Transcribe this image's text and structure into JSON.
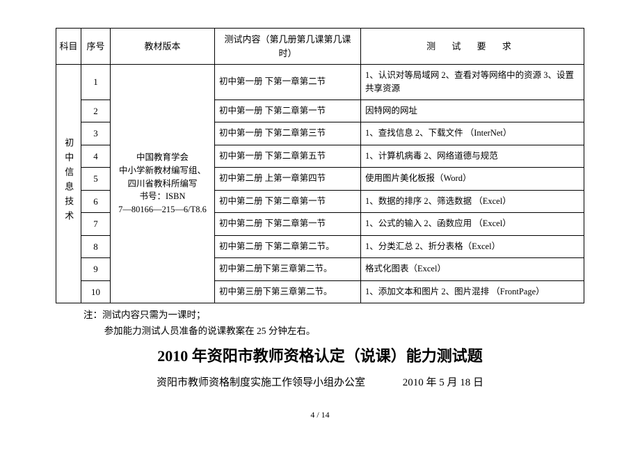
{
  "table": {
    "headers": {
      "subject": "科目",
      "seq": "序号",
      "version": "教材版本",
      "content": "测试内容（第几册第几课第几课时）",
      "req": "测 试 要 求"
    },
    "subject": "初中信息技术",
    "version": "中国教育学会\n中小学新教材编写组、\n四川省教科所编写\n书号：ISBN\n7—80166—215—6/T8.6",
    "rows": [
      {
        "seq": "1",
        "content": "初中第一册 下第一章第二节",
        "req": "1、认识对等局域网 2、查看对等网络中的资源 3、设置共享资源"
      },
      {
        "seq": "2",
        "content": "初中第一册 下第二章第一节",
        "req": "因特网的网址"
      },
      {
        "seq": "3",
        "content": "初中第一册 下第二章第三节",
        "req": "1、查找信息 2、下载文件 （InterNet）"
      },
      {
        "seq": "4",
        "content": "初中第一册 下第二章第五节",
        "req": "1、计算机病毒 2、网络道德与规范"
      },
      {
        "seq": "5",
        "content": "初中第二册 上第一章第四节",
        "req": "使用图片美化板报（Word）"
      },
      {
        "seq": "6",
        "content": "初中第二册 下第二章第一节",
        "req": "1、数据的排序 2、筛选数据 （Excel）"
      },
      {
        "seq": "7",
        "content": "初中第二册 下第二章第一节",
        "req": "1、公式的输入 2、函数应用 （Excel）"
      },
      {
        "seq": "8",
        "content": "初中第二册 下第二章第二节。",
        "req": "1、分类汇总 2、折分表格（Excel）"
      },
      {
        "seq": "9",
        "content": "初中第二册下第三章第二节。",
        "req": "格式化图表（Excel）"
      },
      {
        "seq": "10",
        "content": "初中第三册下第三章第二节。",
        "req": "1、添加文本和图片 2、图片混排 （FrontPage）"
      }
    ]
  },
  "notes": {
    "line1": "注：测试内容只需为一课时；",
    "line2": "参加能力测试人员准备的说课教案在 25 分钟左右。"
  },
  "title": "2010 年资阳市教师资格认定（说课）能力测试题",
  "byline": {
    "org": "资阳市教师资格制度实施工作领导小组办公室",
    "date": "2010 年 5 月 18 日"
  },
  "pagenum": "4 / 14"
}
